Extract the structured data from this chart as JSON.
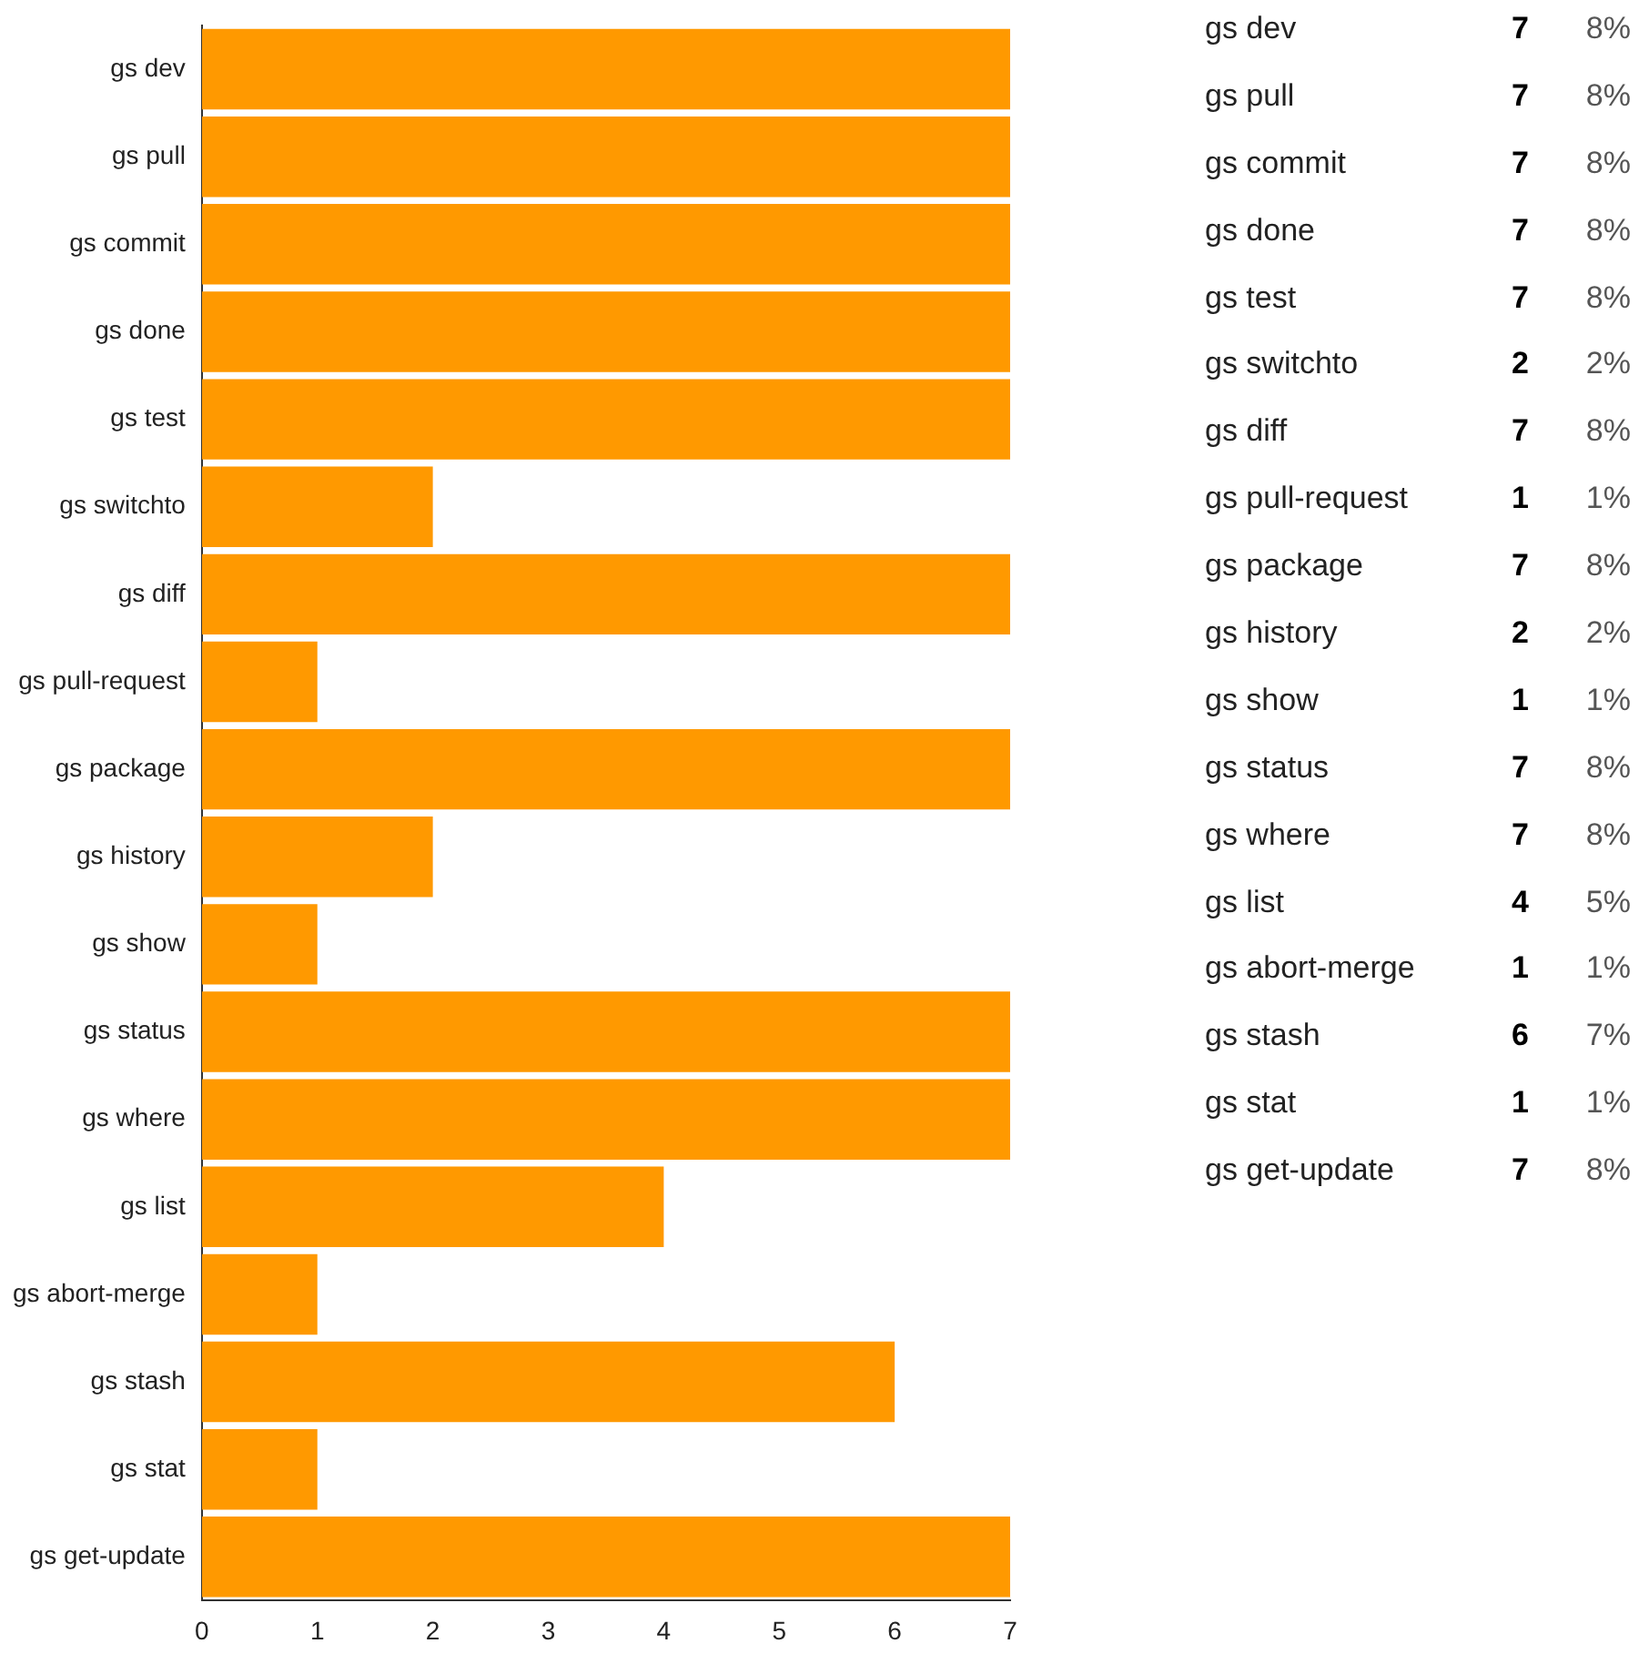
{
  "chart_data": [
    {
      "type": "bar",
      "orientation": "horizontal",
      "categories": [
        "gs dev",
        "gs pull",
        "gs commit",
        "gs done",
        "gs test",
        "gs switchto",
        "gs diff",
        "gs pull-request",
        "gs package",
        "gs history",
        "gs show",
        "gs status",
        "gs where",
        "gs list",
        "gs abort-merge",
        "gs stash",
        "gs stat",
        "gs get-update"
      ],
      "values": [
        7,
        7,
        7,
        7,
        7,
        2,
        7,
        1,
        7,
        2,
        1,
        7,
        7,
        4,
        1,
        6,
        1,
        7
      ],
      "color": "#ff9900",
      "xlim": [
        0,
        7
      ],
      "xticks": [
        0,
        1,
        2,
        3,
        4,
        5,
        6,
        7
      ],
      "grid": false
    },
    {
      "type": "other",
      "annotations": [
        "gs dev",
        "7",
        "8%",
        "gs pull",
        "7",
        "8%",
        "gs commit",
        "7",
        "8%",
        "gs done",
        "7",
        "8%",
        "gs test",
        "7",
        "8%",
        "gs switchto",
        "2",
        "2%",
        "gs diff",
        "7",
        "8%",
        "gs pull-request",
        "1",
        "1%",
        "gs package",
        "7",
        "8%",
        "gs history",
        "2",
        "2%",
        "gs show",
        "1",
        "1%",
        "gs status",
        "7",
        "8%",
        "gs where",
        "7",
        "8%",
        "gs list",
        "4",
        "5%",
        "gs abort-merge",
        "1",
        "1%",
        "gs stash",
        "6",
        "7%",
        "gs stat",
        "1",
        "1%",
        "gs get-update",
        "7",
        "8%"
      ]
    }
  ]
}
